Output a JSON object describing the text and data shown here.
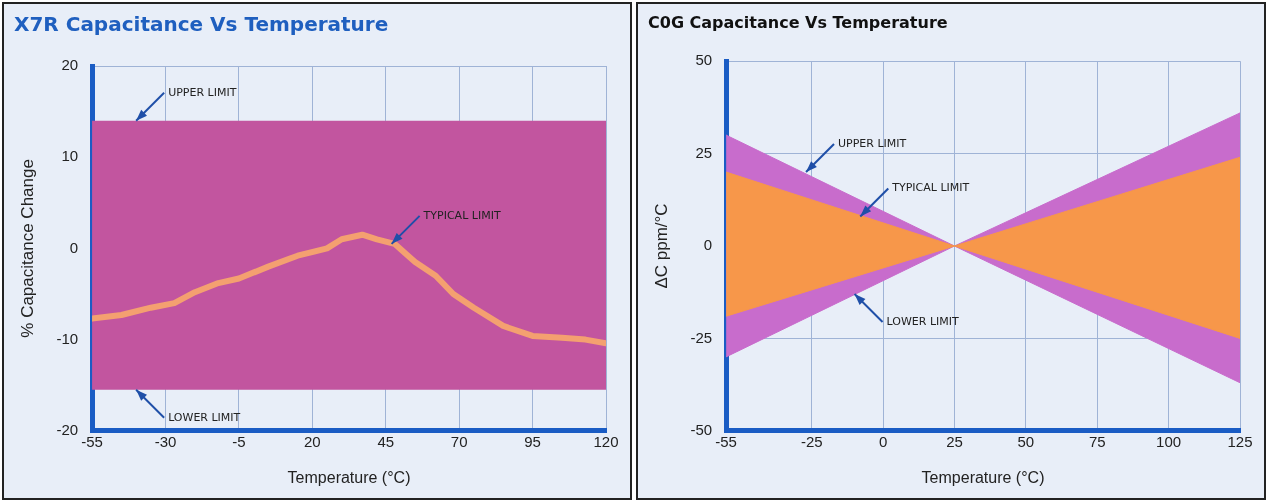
{
  "chart_data": [
    {
      "type": "line",
      "title": "X7R Capacitance Vs Temperature",
      "xlabel": "Temperature (°C)",
      "ylabel": "% Capacitance Change",
      "x": [
        -55,
        -45,
        -35,
        -27,
        -20,
        -12,
        -5,
        5,
        15,
        25,
        30,
        37,
        42,
        48,
        55,
        62,
        68,
        75,
        85,
        95,
        105,
        113,
        120
      ],
      "series": [
        {
          "color": "#f4a070",
          "values": [
            -7.7,
            -7.3,
            -6.5,
            -6.0,
            -4.8,
            -3.8,
            -3.3,
            -2.0,
            -0.8,
            0,
            1.0,
            1.5,
            1.0,
            0.5,
            -1.5,
            -3.0,
            -5.0,
            -6.5,
            -8.5,
            -9.6,
            -9.8,
            -10.0,
            -10.4
          ]
        }
      ],
      "bands": [
        {
          "axis": "y",
          "from": -15.5,
          "to": 14,
          "color": "#c2559f"
        }
      ],
      "annotations": [
        {
          "text": "UPPER LIMIT",
          "x": -40,
          "y": 14
        },
        {
          "text": "TYPICAL LIMIT",
          "x": 47,
          "y": 0.5
        },
        {
          "text": "LOWER LIMIT",
          "x": -40,
          "y": -15.5
        }
      ],
      "xlim": [
        -55,
        120
      ],
      "xticks": [
        -55,
        -30,
        -5,
        20,
        45,
        70,
        95,
        120
      ],
      "ylim": [
        -20,
        20
      ],
      "yticks": [
        -20,
        -10,
        0,
        10,
        20
      ],
      "grid": true,
      "legend": false,
      "marker": "none",
      "line_style": "solid"
    },
    {
      "type": "area",
      "title": "C0G Capacitance Vs Temperature",
      "xlabel": "Temperature (°C)",
      "ylabel": "ΔC ppm/°C",
      "series": [
        {
          "type": "area",
          "color": "#c86ccc",
          "x": [
            -55,
            25,
            125,
            125,
            25,
            -55
          ],
          "values": [
            30,
            0,
            36,
            -37,
            0,
            -30
          ]
        },
        {
          "type": "area",
          "color": "#f7974a",
          "x": [
            -55,
            25,
            125,
            125,
            25,
            -55
          ],
          "values": [
            20,
            0,
            24,
            -25,
            0,
            -19
          ]
        }
      ],
      "annotations": [
        {
          "text": "UPPER LIMIT",
          "x": -27,
          "y": 20
        },
        {
          "text": "TYPICAL LIMIT",
          "x": -8,
          "y": 8
        },
        {
          "text": "LOWER LIMIT",
          "x": -10,
          "y": -13
        }
      ],
      "xlim": [
        -55,
        125
      ],
      "xticks": [
        -55,
        -25,
        0,
        25,
        50,
        75,
        100,
        125
      ],
      "ylim": [
        -50,
        50
      ],
      "yticks": [
        -50,
        -25,
        0,
        25,
        50
      ],
      "grid": true,
      "legend": false
    }
  ]
}
